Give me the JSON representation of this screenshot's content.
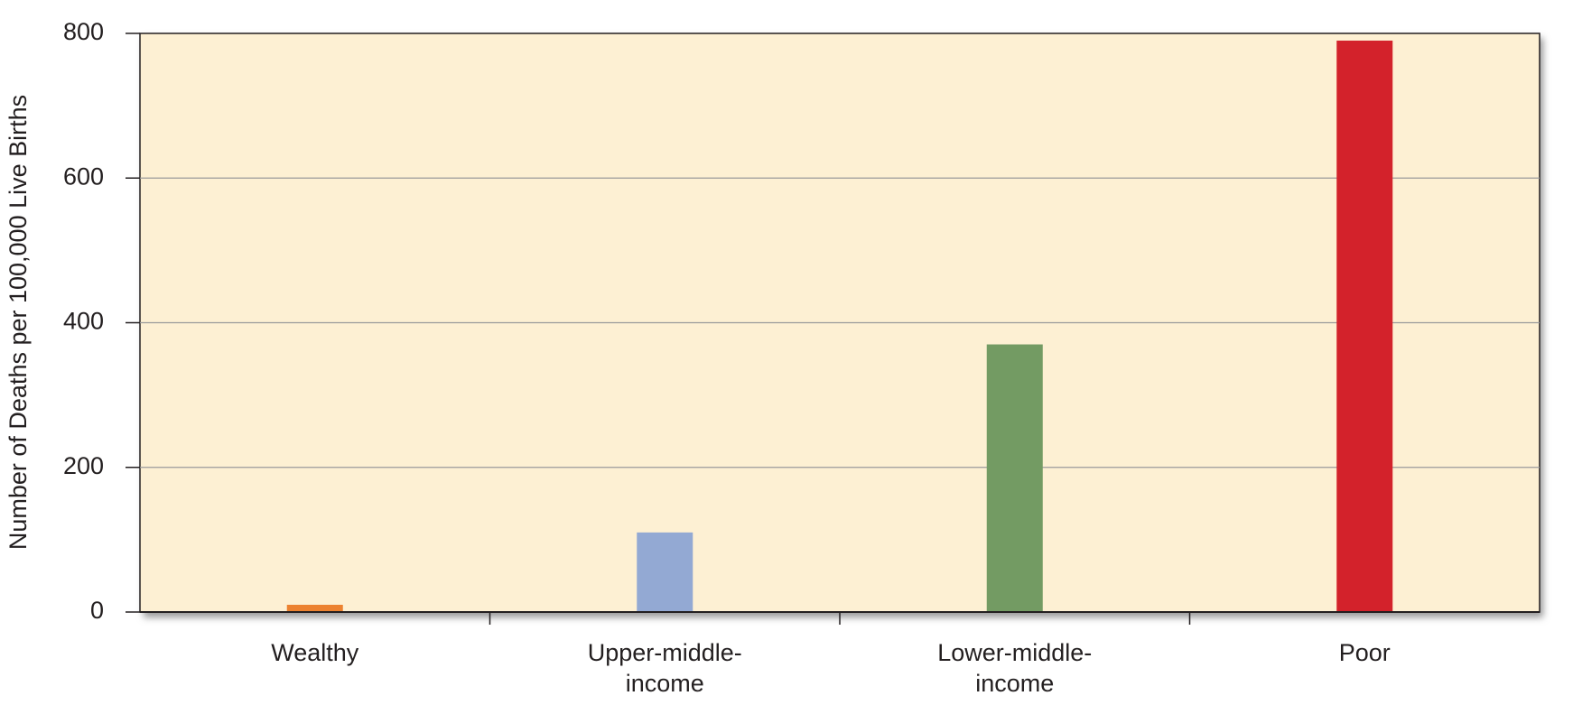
{
  "chart_data": {
    "type": "bar",
    "y_label": "Number of Deaths per 100,000 Live Births",
    "categories": [
      "Wealthy",
      "Upper-middle-income",
      "Lower-middle-income",
      "Poor"
    ],
    "values": [
      10,
      110,
      370,
      790
    ],
    "colors": [
      "#ec8230",
      "#93a9d3",
      "#739b63",
      "#d3222b"
    ],
    "ylim": [
      0,
      800
    ],
    "yticks": [
      0,
      200,
      400,
      600,
      800
    ],
    "grid": true
  }
}
